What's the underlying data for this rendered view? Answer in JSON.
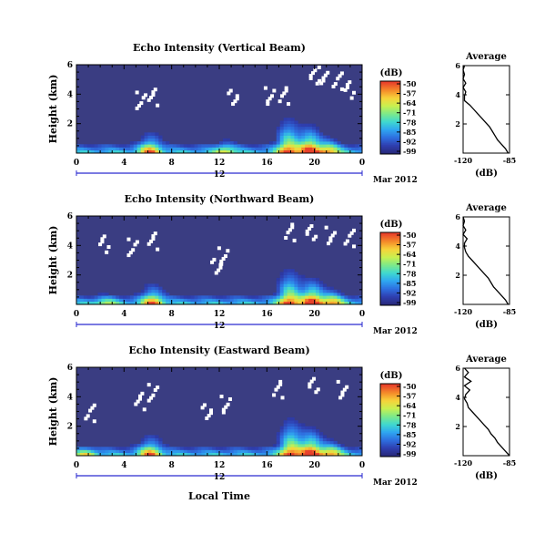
{
  "figure": {
    "xlabel": "Local Time",
    "date_label": "Mar 2012",
    "day_label": "12",
    "colorbar_unit": "(dB)",
    "colorbar_ticks": [
      "-50",
      "-57",
      "-64",
      "-71",
      "-78",
      "-85",
      "-92",
      "-99"
    ],
    "colorbar_colors": [
      "#28287a",
      "#2f3fb0",
      "#2e6fe0",
      "#2fa6f0",
      "#3fd9d0",
      "#7ce98a",
      "#c8f050",
      "#f7d33a",
      "#f58a2a",
      "#e8402a"
    ],
    "profile_title": "Average",
    "profile_xlabel": "(dB)",
    "background_color": "#3a3d82",
    "gap_color": "#ffffff"
  },
  "chart_data": [
    {
      "type": "heatmap",
      "title": "Echo Intensity (Vertical Beam)",
      "ylabel": "Height (km)",
      "x_ticks": [
        "0",
        "4",
        "8",
        "12",
        "16",
        "20",
        "0"
      ],
      "x_tick_values": [
        0,
        4,
        8,
        12,
        16,
        20,
        24
      ],
      "y_ticks": [
        "2",
        "4",
        "6"
      ],
      "y_tick_values": [
        2,
        4,
        6
      ],
      "xlim": [
        0,
        24
      ],
      "ylim": [
        0,
        6
      ],
      "colorbar_range": [
        -99,
        -50
      ],
      "hotspots": [
        {
          "t": 6.2,
          "h": 1.2,
          "s": 0.8
        },
        {
          "t": 17.8,
          "h": 2.0,
          "s": 0.9
        },
        {
          "t": 19.6,
          "h": 1.6,
          "s": 1.0
        },
        {
          "t": 21.2,
          "h": 1.0,
          "s": 0.7
        },
        {
          "t": 12.5,
          "h": 0.8,
          "s": 0.5
        }
      ],
      "gaps": [
        [
          5.3,
          3.7
        ],
        [
          6.3,
          3.9
        ],
        [
          13.0,
          4.0
        ],
        [
          16.1,
          4.0
        ],
        [
          17.3,
          4.0
        ],
        [
          19.9,
          5.2
        ],
        [
          20.6,
          5.4
        ],
        [
          21.8,
          5.0
        ],
        [
          22.8,
          4.4
        ]
      ],
      "profile": {
        "x_ticks": [
          "-120",
          "-85"
        ],
        "xlim": [
          -120,
          -85
        ],
        "y_ticks": [
          "2",
          "4",
          "6"
        ],
        "ylim": [
          0,
          6
        ],
        "height": [
          0.0,
          0.3,
          0.6,
          0.9,
          1.2,
          1.5,
          1.8,
          2.1,
          2.4,
          2.7,
          3.0,
          3.3,
          3.6,
          3.9,
          4.2,
          4.5,
          4.8,
          5.1,
          5.4,
          5.7,
          6.0
        ],
        "value": [
          -86,
          -88,
          -91,
          -94,
          -96,
          -98,
          -100,
          -103,
          -106,
          -109,
          -112,
          -115,
          -119,
          -119,
          -118,
          -120,
          -118,
          -120,
          -119,
          -120,
          -119
        ]
      }
    },
    {
      "type": "heatmap",
      "title": "Echo Intensity (Northward Beam)",
      "ylabel": "Height (km)",
      "x_ticks": [
        "0",
        "4",
        "8",
        "12",
        "16",
        "20",
        "0"
      ],
      "x_tick_values": [
        0,
        4,
        8,
        12,
        16,
        20,
        24
      ],
      "y_ticks": [
        "2",
        "4",
        "6"
      ],
      "y_tick_values": [
        2,
        4,
        6
      ],
      "xlim": [
        0,
        24
      ],
      "ylim": [
        0,
        6
      ],
      "colorbar_range": [
        -99,
        -50
      ],
      "hotspots": [
        {
          "t": 6.4,
          "h": 1.2,
          "s": 0.8
        },
        {
          "t": 17.9,
          "h": 2.0,
          "s": 0.9
        },
        {
          "t": 19.8,
          "h": 1.5,
          "s": 1.0
        },
        {
          "t": 21.5,
          "h": 1.0,
          "s": 0.7
        },
        {
          "t": 2.5,
          "h": 0.6,
          "s": 0.4
        }
      ],
      "gaps": [
        [
          4.6,
          4.0
        ],
        [
          6.3,
          4.4
        ],
        [
          11.6,
          2.8
        ],
        [
          12.2,
          3.4
        ],
        [
          17.8,
          5.0
        ],
        [
          19.6,
          4.9
        ],
        [
          21.2,
          4.8
        ],
        [
          22.8,
          4.6
        ],
        [
          2.2,
          4.2
        ]
      ],
      "profile": {
        "x_ticks": [
          "-120",
          "-85"
        ],
        "xlim": [
          -120,
          -85
        ],
        "y_ticks": [
          "2",
          "4",
          "6"
        ],
        "ylim": [
          0,
          6
        ],
        "height": [
          0.0,
          0.3,
          0.6,
          0.9,
          1.2,
          1.5,
          1.8,
          2.1,
          2.4,
          2.7,
          3.0,
          3.3,
          3.6,
          3.9,
          4.2,
          4.5,
          4.8,
          5.1,
          5.4,
          5.7,
          6.0
        ],
        "value": [
          -86,
          -88,
          -91,
          -94,
          -97,
          -99,
          -101,
          -104,
          -107,
          -110,
          -113,
          -116,
          -118,
          -119,
          -119,
          -117,
          -120,
          -118,
          -120,
          -119,
          -120
        ]
      }
    },
    {
      "type": "heatmap",
      "title": "Echo Intensity (Eastward Beam)",
      "ylabel": "Height (km)",
      "x_ticks": [
        "0",
        "4",
        "8",
        "12",
        "16",
        "20",
        "0"
      ],
      "x_tick_values": [
        0,
        4,
        8,
        12,
        16,
        20,
        24
      ],
      "y_ticks": [
        "2",
        "4",
        "6"
      ],
      "y_tick_values": [
        2,
        4,
        6
      ],
      "xlim": [
        0,
        24
      ],
      "ylim": [
        0,
        6
      ],
      "colorbar_range": [
        -99,
        -50
      ],
      "hotspots": [
        {
          "t": 6.2,
          "h": 1.2,
          "s": 0.8
        },
        {
          "t": 18.0,
          "h": 2.1,
          "s": 0.9
        },
        {
          "t": 19.7,
          "h": 1.6,
          "s": 1.0
        },
        {
          "t": 21.4,
          "h": 1.0,
          "s": 0.7
        },
        {
          "t": 0.8,
          "h": 0.6,
          "s": 0.5
        }
      ],
      "gaps": [
        [
          6.3,
          4.4
        ],
        [
          5.2,
          3.8
        ],
        [
          10.8,
          3.2
        ],
        [
          12.4,
          3.6
        ],
        [
          16.8,
          4.6
        ],
        [
          19.8,
          4.8
        ],
        [
          22.2,
          4.6
        ],
        [
          1.0,
          3.0
        ]
      ],
      "profile": {
        "x_ticks": [
          "-120",
          "-85"
        ],
        "xlim": [
          -120,
          -85
        ],
        "y_ticks": [
          "2",
          "4",
          "6"
        ],
        "ylim": [
          0,
          6
        ],
        "height": [
          0.0,
          0.3,
          0.6,
          0.9,
          1.2,
          1.5,
          1.8,
          2.1,
          2.4,
          2.7,
          3.0,
          3.3,
          3.6,
          3.9,
          4.2,
          4.5,
          4.8,
          5.1,
          5.4,
          5.7,
          6.0
        ],
        "value": [
          -85,
          -88,
          -91,
          -94,
          -96,
          -99,
          -101,
          -104,
          -107,
          -110,
          -113,
          -116,
          -117,
          -119,
          -118,
          -115,
          -119,
          -114,
          -119,
          -116,
          -119
        ]
      }
    }
  ]
}
